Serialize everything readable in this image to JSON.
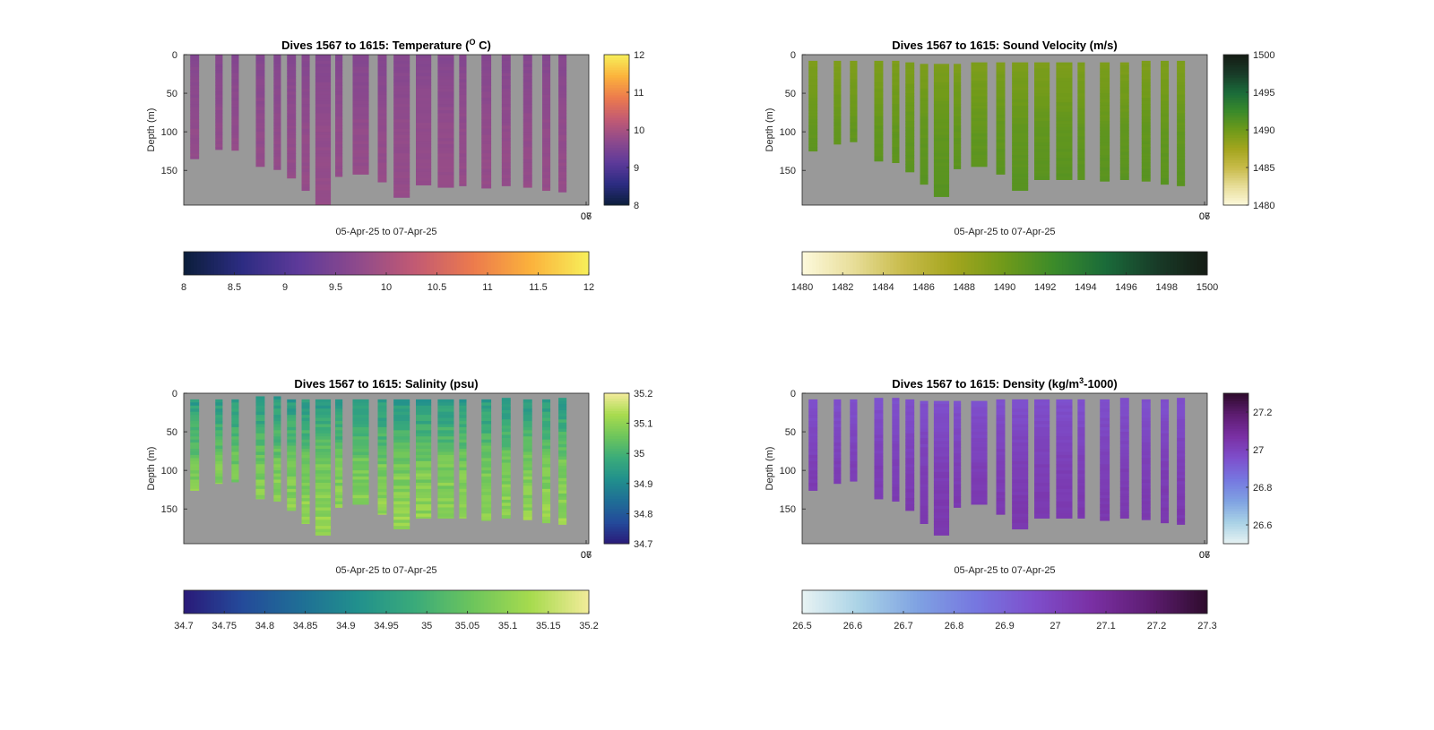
{
  "figure": {
    "background": "#ffffff",
    "missing_color": "#999999"
  },
  "chart_data": [
    {
      "id": "temperature",
      "type": "heatmap",
      "title_main": "Dives 1567 to 1615: Temperature (",
      "title_sup": "O",
      "title_tail": " C)",
      "xlabel": "05-Apr-25 to 07-Apr-25",
      "ylabel": "Depth (m)",
      "x_tick_labels": [
        "06",
        "07"
      ],
      "y_ticks": [
        0,
        50,
        100,
        150
      ],
      "ylim": [
        0,
        195
      ],
      "clim": [
        8,
        12
      ],
      "colormap": [
        "#0b1e3a",
        "#2c2c82",
        "#5e3a9a",
        "#8e4a8c",
        "#c25a73",
        "#ec7a4d",
        "#fbb23c",
        "#f7ef5a"
      ],
      "side_ticks": [
        8,
        9,
        10,
        11,
        12
      ],
      "bottom_ticks": [
        "8",
        "8.5",
        "9",
        "9.5",
        "10",
        "10.5",
        "11",
        "11.5",
        "12"
      ],
      "value_profile": [
        9.6,
        9.75,
        9.8
      ],
      "noise": 0.04,
      "profiles": [
        {
          "start": 0,
          "max_depth": 135
        },
        {
          "start": 0,
          "max_depth": 123
        },
        {
          "start": 0,
          "max_depth": 124
        },
        {
          "start": 0,
          "max_depth": 145
        },
        {
          "start": 0,
          "max_depth": 149
        },
        {
          "start": 0,
          "max_depth": 160
        },
        {
          "start": 0,
          "max_depth": 176
        },
        {
          "start": 0,
          "max_depth": 194
        },
        {
          "start": 0,
          "max_depth": 158
        },
        {
          "start": 0,
          "max_depth": 155
        },
        {
          "start": 0,
          "max_depth": 165
        },
        {
          "start": 0,
          "max_depth": 185
        },
        {
          "start": 0,
          "max_depth": 169
        },
        {
          "start": 0,
          "max_depth": 172
        },
        {
          "start": 0,
          "max_depth": 170
        },
        {
          "start": 0,
          "max_depth": 173
        },
        {
          "start": 0,
          "max_depth": 170
        },
        {
          "start": 0,
          "max_depth": 172
        },
        {
          "start": 0,
          "max_depth": 176
        },
        {
          "start": 0,
          "max_depth": 178
        }
      ]
    },
    {
      "id": "sound_velocity",
      "type": "heatmap",
      "title_main": "Dives 1567 to 1615: Sound Velocity (m/s)",
      "title_sup": "",
      "title_tail": "",
      "xlabel": "05-Apr-25 to 07-Apr-25",
      "ylabel": "Depth (m)",
      "x_tick_labels": [
        "06",
        "07"
      ],
      "y_ticks": [
        0,
        50,
        100,
        150
      ],
      "ylim": [
        0,
        195
      ],
      "clim": [
        1480,
        1500
      ],
      "colormap": [
        "#fdf9dc",
        "#e8de9a",
        "#c8bb4a",
        "#a3a51e",
        "#6f9a1a",
        "#3a8a2a",
        "#1a6b3a",
        "#183b28",
        "#151c14"
      ],
      "side_ticks": [
        1480,
        1485,
        1490,
        1495,
        1500
      ],
      "bottom_ticks": [
        "1480",
        "1482",
        "1484",
        "1486",
        "1488",
        "1490",
        "1492",
        "1494",
        "1496",
        "1498",
        "1500"
      ],
      "value_profile": [
        1489.2,
        1490.6,
        1491.2
      ],
      "noise": 0.15,
      "profiles": [
        {
          "start": 8,
          "max_depth": 125
        },
        {
          "start": 8,
          "max_depth": 116
        },
        {
          "start": 8,
          "max_depth": 113
        },
        {
          "start": 8,
          "max_depth": 138
        },
        {
          "start": 8,
          "max_depth": 140
        },
        {
          "start": 10,
          "max_depth": 152
        },
        {
          "start": 12,
          "max_depth": 168
        },
        {
          "start": 12,
          "max_depth": 184
        },
        {
          "start": 12,
          "max_depth": 148
        },
        {
          "start": 10,
          "max_depth": 145
        },
        {
          "start": 10,
          "max_depth": 155
        },
        {
          "start": 10,
          "max_depth": 176
        },
        {
          "start": 10,
          "max_depth": 162
        },
        {
          "start": 10,
          "max_depth": 162
        },
        {
          "start": 10,
          "max_depth": 162
        },
        {
          "start": 10,
          "max_depth": 164
        },
        {
          "start": 10,
          "max_depth": 162
        },
        {
          "start": 8,
          "max_depth": 164
        },
        {
          "start": 8,
          "max_depth": 168
        },
        {
          "start": 8,
          "max_depth": 170
        }
      ]
    },
    {
      "id": "salinity",
      "type": "heatmap",
      "title_main": "Dives 1567 to 1615: Salinity (psu)",
      "title_sup": "",
      "title_tail": "",
      "xlabel": "05-Apr-25 to 07-Apr-25",
      "ylabel": "Depth (m)",
      "x_tick_labels": [
        "06",
        "07"
      ],
      "y_ticks": [
        0,
        50,
        100,
        150
      ],
      "ylim": [
        0,
        195
      ],
      "clim": [
        34.7,
        35.2
      ],
      "colormap": [
        "#2a1a78",
        "#244a9a",
        "#1f6e96",
        "#21908d",
        "#3aab7a",
        "#6dc55c",
        "#a7db4e",
        "#f2eb9a"
      ],
      "side_ticks": [
        34.7,
        34.8,
        34.9,
        35.0,
        35.1,
        35.2
      ],
      "bottom_ticks": [
        "34.7",
        "34.75",
        "34.8",
        "34.85",
        "34.9",
        "34.95",
        "35",
        "35.05",
        "35.1",
        "35.15",
        "35.2"
      ],
      "value_profile": [
        34.93,
        35.07,
        35.12
      ],
      "noise": 0.03,
      "profiles": [
        {
          "start": 8,
          "max_depth": 126
        },
        {
          "start": 8,
          "max_depth": 117
        },
        {
          "start": 8,
          "max_depth": 115
        },
        {
          "start": 4,
          "max_depth": 137
        },
        {
          "start": 4,
          "max_depth": 140
        },
        {
          "start": 8,
          "max_depth": 152
        },
        {
          "start": 8,
          "max_depth": 169
        },
        {
          "start": 8,
          "max_depth": 184
        },
        {
          "start": 8,
          "max_depth": 148
        },
        {
          "start": 8,
          "max_depth": 144
        },
        {
          "start": 8,
          "max_depth": 157
        },
        {
          "start": 8,
          "max_depth": 176
        },
        {
          "start": 8,
          "max_depth": 162
        },
        {
          "start": 8,
          "max_depth": 162
        },
        {
          "start": 8,
          "max_depth": 162
        },
        {
          "start": 8,
          "max_depth": 165
        },
        {
          "start": 6,
          "max_depth": 162
        },
        {
          "start": 8,
          "max_depth": 164
        },
        {
          "start": 8,
          "max_depth": 168
        },
        {
          "start": 6,
          "max_depth": 170
        }
      ]
    },
    {
      "id": "density",
      "type": "heatmap",
      "title_main": "Dives 1567 to 1615: Density (kg/m",
      "title_sup": "3",
      "title_tail": "-1000)",
      "xlabel": "05-Apr-25 to 07-Apr-25",
      "ylabel": "Depth (m)",
      "x_tick_labels": [
        "06",
        "07"
      ],
      "y_ticks": [
        0,
        50,
        100,
        150
      ],
      "ylim": [
        0,
        195
      ],
      "clim": [
        26.5,
        27.3
      ],
      "colormap": [
        "#e8f3f3",
        "#a9d2e6",
        "#7fa2e2",
        "#7677e0",
        "#7e4fcc",
        "#7a30a4",
        "#5e1d72",
        "#2e0b2c"
      ],
      "side_ticks": [
        26.6,
        26.8,
        27.0,
        27.2
      ],
      "bottom_ticks": [
        "26.5",
        "26.6",
        "26.7",
        "26.8",
        "26.9",
        "27",
        "27.1",
        "27.2",
        "27.3"
      ],
      "value_profile": [
        26.95,
        27.02,
        27.05
      ],
      "noise": 0.012,
      "profiles": [
        {
          "start": 8,
          "max_depth": 126
        },
        {
          "start": 8,
          "max_depth": 117
        },
        {
          "start": 8,
          "max_depth": 114
        },
        {
          "start": 6,
          "max_depth": 137
        },
        {
          "start": 6,
          "max_depth": 140
        },
        {
          "start": 8,
          "max_depth": 152
        },
        {
          "start": 10,
          "max_depth": 169
        },
        {
          "start": 10,
          "max_depth": 184
        },
        {
          "start": 10,
          "max_depth": 148
        },
        {
          "start": 10,
          "max_depth": 144
        },
        {
          "start": 8,
          "max_depth": 157
        },
        {
          "start": 8,
          "max_depth": 176
        },
        {
          "start": 8,
          "max_depth": 162
        },
        {
          "start": 8,
          "max_depth": 162
        },
        {
          "start": 8,
          "max_depth": 162
        },
        {
          "start": 8,
          "max_depth": 165
        },
        {
          "start": 6,
          "max_depth": 162
        },
        {
          "start": 8,
          "max_depth": 164
        },
        {
          "start": 8,
          "max_depth": 168
        },
        {
          "start": 6,
          "max_depth": 170
        }
      ]
    }
  ]
}
